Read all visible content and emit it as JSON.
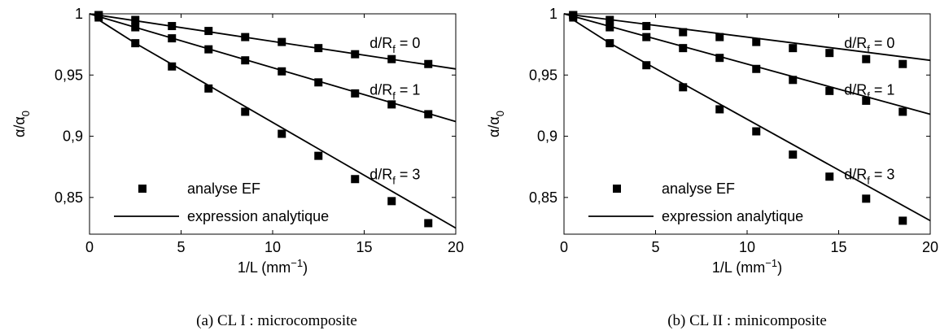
{
  "legend": {
    "markers_label": "analyse EF",
    "line_label": "expression analytique"
  },
  "axis_labels": {
    "x_main": "1/L (mm",
    "x_sup": "−1",
    "x_close": ")",
    "y_main": "α/α",
    "y_sub": "0"
  },
  "curve_labels": [
    {
      "main": "d/R",
      "sub": "f",
      "value": " = 0"
    },
    {
      "main": "d/R",
      "sub": "f",
      "value": " = 1"
    },
    {
      "main": "d/R",
      "sub": "f",
      "value": " = 3"
    }
  ],
  "captions": [
    "(a) CL I : microcomposite",
    "(b) CL II : minicomposite"
  ],
  "chart_data": [
    {
      "type": "scatter",
      "title": "",
      "caption": "(a) CL I : microcomposite",
      "xlim": [
        0,
        20
      ],
      "ylim": [
        0.82,
        1.0
      ],
      "xticks": [
        0,
        5,
        10,
        15,
        20
      ],
      "yticks": [
        0.85,
        0.9,
        0.95,
        1
      ],
      "xtick_labels": [
        "0",
        "5",
        "10",
        "15",
        "20"
      ],
      "ytick_labels": [
        "0,85",
        "0,9",
        "0,95",
        "1"
      ],
      "grid": false,
      "legend_position": "bottom-left",
      "x": [
        0.5,
        2.5,
        4.5,
        6.5,
        8.5,
        10.5,
        12.5,
        14.5,
        16.5,
        18.5
      ],
      "series": [
        {
          "name": "d/Rf = 0",
          "kind": "markers",
          "values": [
            0.999,
            0.995,
            0.99,
            0.986,
            0.981,
            0.977,
            0.972,
            0.967,
            0.963,
            0.959
          ]
        },
        {
          "name": "d/Rf = 1",
          "kind": "markers",
          "values": [
            0.999,
            0.989,
            0.98,
            0.971,
            0.962,
            0.953,
            0.944,
            0.935,
            0.926,
            0.918
          ]
        },
        {
          "name": "d/Rf = 3",
          "kind": "markers",
          "values": [
            0.997,
            0.976,
            0.957,
            0.939,
            0.92,
            0.902,
            0.884,
            0.865,
            0.847,
            0.829
          ]
        },
        {
          "name": "d/Rf = 0",
          "kind": "line",
          "x": [
            0,
            20
          ],
          "values": [
            1.0,
            0.955
          ]
        },
        {
          "name": "d/Rf = 1",
          "kind": "line",
          "x": [
            0,
            20
          ],
          "values": [
            1.0,
            0.912
          ]
        },
        {
          "name": "d/Rf = 3",
          "kind": "line",
          "x": [
            0.5,
            2.5,
            20
          ],
          "values": [
            0.995,
            0.976,
            0.825
          ]
        }
      ],
      "curve_label_positions": [
        {
          "label_index": 0,
          "x": 15.3,
          "y": 0.972
        },
        {
          "label_index": 1,
          "x": 15.3,
          "y": 0.934
        },
        {
          "label_index": 2,
          "x": 15.3,
          "y": 0.865
        }
      ]
    },
    {
      "type": "scatter",
      "title": "",
      "caption": "(b) CL II : minicomposite",
      "xlim": [
        0,
        20
      ],
      "ylim": [
        0.82,
        1.0
      ],
      "xticks": [
        0,
        5,
        10,
        15,
        20
      ],
      "yticks": [
        0.85,
        0.9,
        0.95,
        1
      ],
      "xtick_labels": [
        "0",
        "5",
        "10",
        "15",
        "20"
      ],
      "ytick_labels": [
        "0,85",
        "0,9",
        "0,95",
        "1"
      ],
      "grid": false,
      "legend_position": "bottom-left",
      "x": [
        0.5,
        2.5,
        4.5,
        6.5,
        8.5,
        10.5,
        12.5,
        14.5,
        16.5,
        18.5
      ],
      "series": [
        {
          "name": "d/Rf = 0",
          "kind": "markers",
          "values": [
            0.999,
            0.995,
            0.99,
            0.985,
            0.981,
            0.977,
            0.972,
            0.968,
            0.963,
            0.959
          ]
        },
        {
          "name": "d/Rf = 1",
          "kind": "markers",
          "values": [
            0.999,
            0.989,
            0.981,
            0.972,
            0.964,
            0.955,
            0.946,
            0.937,
            0.929,
            0.92
          ]
        },
        {
          "name": "d/Rf = 3",
          "kind": "markers",
          "values": [
            0.997,
            0.976,
            0.958,
            0.94,
            0.922,
            0.904,
            0.885,
            0.867,
            0.849,
            0.831
          ]
        },
        {
          "name": "d/Rf = 0",
          "kind": "line",
          "x": [
            0,
            20
          ],
          "values": [
            1.0,
            0.962
          ]
        },
        {
          "name": "d/Rf = 1",
          "kind": "line",
          "x": [
            0,
            20
          ],
          "values": [
            1.0,
            0.918
          ]
        },
        {
          "name": "d/Rf = 3",
          "kind": "line",
          "x": [
            0.5,
            2.5,
            20
          ],
          "values": [
            0.995,
            0.976,
            0.831
          ]
        }
      ],
      "curve_label_positions": [
        {
          "label_index": 0,
          "x": 15.3,
          "y": 0.972
        },
        {
          "label_index": 1,
          "x": 15.3,
          "y": 0.934
        },
        {
          "label_index": 2,
          "x": 15.3,
          "y": 0.865
        }
      ]
    }
  ]
}
